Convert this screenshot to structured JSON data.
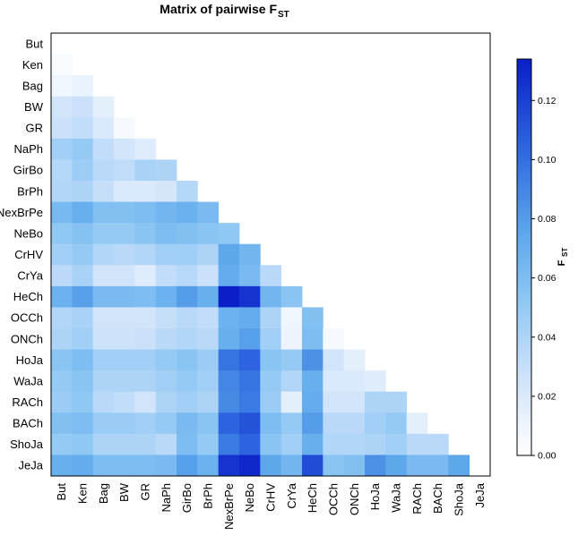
{
  "chart_data": {
    "type": "heatmap",
    "title": "Matrix of pairwise F",
    "title_subscript": "ST",
    "legend_label": "F",
    "legend_label_subscript": "ST",
    "populations": [
      "But",
      "Ken",
      "Bag",
      "BW",
      "GR",
      "NaPh",
      "GirBo",
      "BrPh",
      "NexBrPe",
      "NeBo",
      "CrHV",
      "CrYa",
      "HeCh",
      "OCCh",
      "ONCh",
      "HoJa",
      "WaJa",
      "RACh",
      "BACh",
      "ShoJa",
      "JeJa"
    ],
    "colorbar": {
      "min": 0.0,
      "max": 0.134,
      "ticks": [
        "0.00",
        "0.02",
        "0.04",
        "0.06",
        "0.08",
        "0.10",
        "0.12"
      ],
      "low_color": "#ffffff",
      "high_color": "#0a1fc8"
    },
    "lower_triangle": [
      [],
      [
        0.004
      ],
      [
        0.008,
        0.012
      ],
      [
        0.025,
        0.028,
        0.015
      ],
      [
        0.028,
        0.032,
        0.02,
        0.005
      ],
      [
        0.045,
        0.05,
        0.032,
        0.024,
        0.018
      ],
      [
        0.037,
        0.047,
        0.035,
        0.033,
        0.042,
        0.04
      ],
      [
        0.038,
        0.04,
        0.03,
        0.02,
        0.02,
        0.023,
        0.037
      ],
      [
        0.063,
        0.07,
        0.058,
        0.058,
        0.06,
        0.065,
        0.069,
        0.062
      ],
      [
        0.052,
        0.057,
        0.05,
        0.05,
        0.055,
        0.061,
        0.058,
        0.055,
        0.052
      ],
      [
        0.045,
        0.05,
        0.038,
        0.035,
        0.038,
        0.045,
        0.046,
        0.04,
        0.075,
        0.065
      ],
      [
        0.034,
        0.042,
        0.025,
        0.025,
        0.018,
        0.032,
        0.036,
        0.028,
        0.072,
        0.062,
        0.035
      ],
      [
        0.068,
        0.078,
        0.062,
        0.062,
        0.06,
        0.068,
        0.08,
        0.07,
        0.134,
        0.125,
        0.065,
        0.055
      ],
      [
        0.038,
        0.042,
        0.025,
        0.025,
        0.025,
        0.03,
        0.035,
        0.032,
        0.068,
        0.072,
        0.04,
        0.008,
        0.058
      ],
      [
        0.04,
        0.045,
        0.027,
        0.027,
        0.028,
        0.035,
        0.038,
        0.035,
        0.07,
        0.078,
        0.045,
        0.01,
        0.06,
        0.005
      ],
      [
        0.055,
        0.06,
        0.045,
        0.045,
        0.045,
        0.05,
        0.055,
        0.048,
        0.098,
        0.105,
        0.055,
        0.05,
        0.085,
        0.025,
        0.015
      ],
      [
        0.05,
        0.055,
        0.04,
        0.04,
        0.04,
        0.045,
        0.05,
        0.045,
        0.09,
        0.098,
        0.05,
        0.038,
        0.07,
        0.02,
        0.02,
        0.018
      ],
      [
        0.048,
        0.052,
        0.035,
        0.032,
        0.025,
        0.04,
        0.045,
        0.04,
        0.088,
        0.095,
        0.048,
        0.015,
        0.072,
        0.025,
        0.025,
        0.04,
        0.04
      ],
      [
        0.058,
        0.06,
        0.048,
        0.048,
        0.045,
        0.05,
        0.062,
        0.055,
        0.105,
        0.112,
        0.06,
        0.05,
        0.08,
        0.035,
        0.035,
        0.045,
        0.05,
        0.015
      ],
      [
        0.05,
        0.052,
        0.04,
        0.04,
        0.04,
        0.035,
        0.06,
        0.05,
        0.095,
        0.105,
        0.055,
        0.045,
        0.07,
        0.038,
        0.038,
        0.04,
        0.045,
        0.035,
        0.035
      ],
      [
        0.07,
        0.072,
        0.06,
        0.06,
        0.06,
        0.062,
        0.078,
        0.068,
        0.125,
        0.13,
        0.075,
        0.065,
        0.115,
        0.055,
        0.058,
        0.085,
        0.075,
        0.062,
        0.062,
        0.075
      ]
    ]
  }
}
